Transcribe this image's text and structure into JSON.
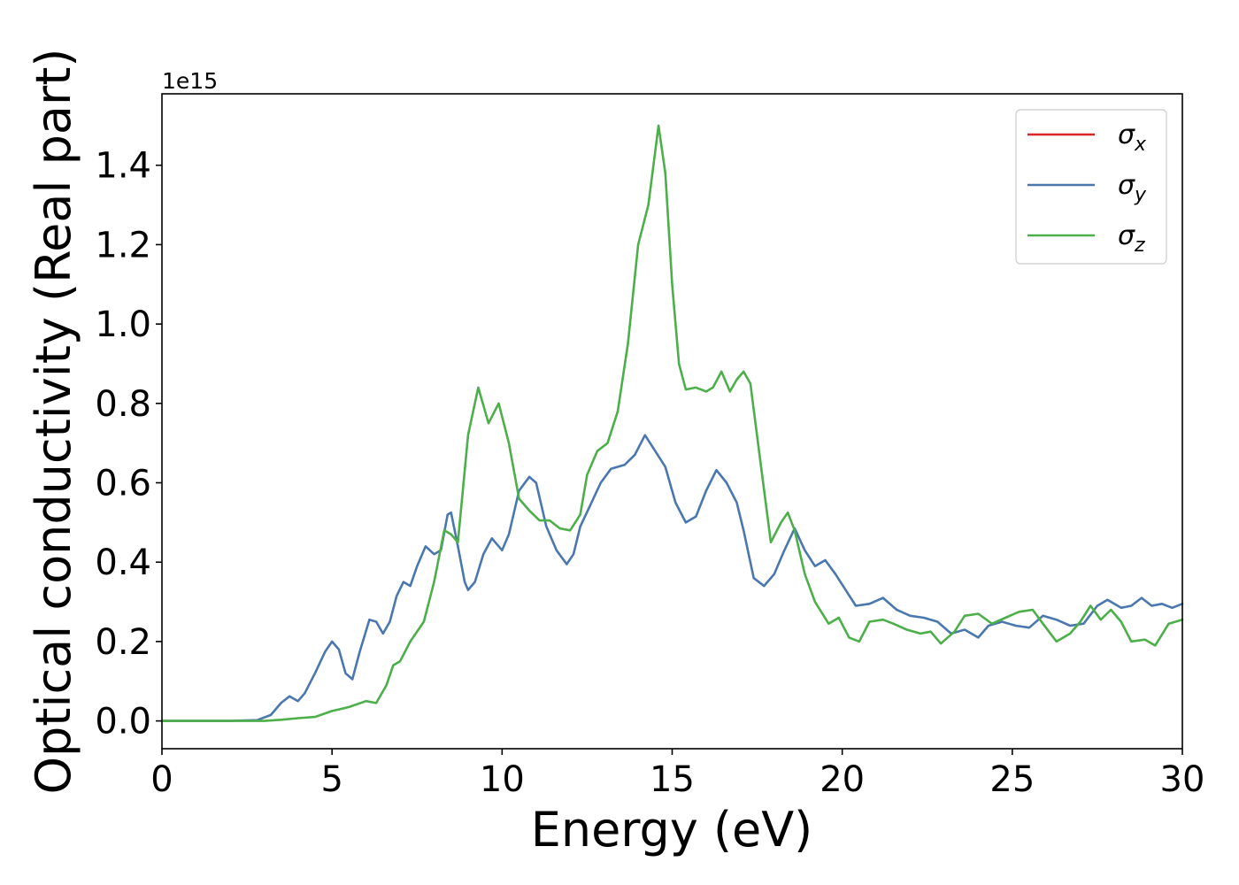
{
  "chart_data": {
    "type": "line",
    "title": "",
    "xlabel": "Energy (eV)",
    "ylabel": "Optical conductivity (Real part)",
    "y_offset_label": "1e15",
    "y_scale": 1000000000000000.0,
    "xlim": [
      0,
      30
    ],
    "ylim": [
      -0.07,
      1.58
    ],
    "x_ticks": [
      0,
      5,
      10,
      15,
      20,
      25,
      30
    ],
    "x_tick_labels": [
      "0",
      "5",
      "10",
      "15",
      "20",
      "25",
      "30"
    ],
    "y_ticks": [
      0.0,
      0.2,
      0.4,
      0.6,
      0.8,
      1.0,
      1.2,
      1.4
    ],
    "y_tick_labels": [
      "0.0",
      "0.2",
      "0.4",
      "0.6",
      "0.8",
      "1.0",
      "1.2",
      "1.4"
    ],
    "grid": false,
    "legend_position": "top-right",
    "series": [
      {
        "name": "σ",
        "subscript": "x",
        "color": "#d62728",
        "points": []
      },
      {
        "name": "σ",
        "subscript": "y",
        "color": "#4a78ae",
        "points": [
          [
            0,
            0.0
          ],
          [
            1,
            0.0
          ],
          [
            2,
            0.0
          ],
          [
            2.8,
            0.002
          ],
          [
            3.2,
            0.015
          ],
          [
            3.5,
            0.045
          ],
          [
            3.75,
            0.062
          ],
          [
            4.0,
            0.05
          ],
          [
            4.2,
            0.07
          ],
          [
            4.5,
            0.12
          ],
          [
            4.8,
            0.175
          ],
          [
            5.0,
            0.2
          ],
          [
            5.2,
            0.18
          ],
          [
            5.4,
            0.12
          ],
          [
            5.6,
            0.105
          ],
          [
            5.8,
            0.17
          ],
          [
            6.1,
            0.255
          ],
          [
            6.3,
            0.25
          ],
          [
            6.5,
            0.22
          ],
          [
            6.7,
            0.25
          ],
          [
            6.9,
            0.315
          ],
          [
            7.1,
            0.35
          ],
          [
            7.3,
            0.34
          ],
          [
            7.5,
            0.39
          ],
          [
            7.75,
            0.44
          ],
          [
            8.0,
            0.42
          ],
          [
            8.2,
            0.43
          ],
          [
            8.4,
            0.52
          ],
          [
            8.5,
            0.525
          ],
          [
            8.7,
            0.44
          ],
          [
            8.9,
            0.35
          ],
          [
            9.0,
            0.33
          ],
          [
            9.2,
            0.35
          ],
          [
            9.45,
            0.42
          ],
          [
            9.7,
            0.46
          ],
          [
            10.0,
            0.43
          ],
          [
            10.2,
            0.47
          ],
          [
            10.5,
            0.58
          ],
          [
            10.8,
            0.615
          ],
          [
            11.0,
            0.6
          ],
          [
            11.3,
            0.49
          ],
          [
            11.6,
            0.43
          ],
          [
            11.9,
            0.395
          ],
          [
            12.1,
            0.42
          ],
          [
            12.3,
            0.49
          ],
          [
            12.6,
            0.545
          ],
          [
            12.9,
            0.6
          ],
          [
            13.2,
            0.635
          ],
          [
            13.6,
            0.645
          ],
          [
            13.9,
            0.67
          ],
          [
            14.2,
            0.72
          ],
          [
            14.5,
            0.68
          ],
          [
            14.8,
            0.64
          ],
          [
            15.1,
            0.55
          ],
          [
            15.4,
            0.5
          ],
          [
            15.7,
            0.515
          ],
          [
            16.0,
            0.58
          ],
          [
            16.3,
            0.632
          ],
          [
            16.6,
            0.6
          ],
          [
            16.9,
            0.55
          ],
          [
            17.1,
            0.48
          ],
          [
            17.4,
            0.36
          ],
          [
            17.7,
            0.34
          ],
          [
            18.0,
            0.37
          ],
          [
            18.3,
            0.43
          ],
          [
            18.6,
            0.485
          ],
          [
            18.9,
            0.43
          ],
          [
            19.2,
            0.39
          ],
          [
            19.5,
            0.405
          ],
          [
            19.8,
            0.37
          ],
          [
            20.1,
            0.33
          ],
          [
            20.4,
            0.29
          ],
          [
            20.8,
            0.295
          ],
          [
            21.2,
            0.31
          ],
          [
            21.6,
            0.28
          ],
          [
            22.0,
            0.265
          ],
          [
            22.4,
            0.26
          ],
          [
            22.8,
            0.25
          ],
          [
            23.2,
            0.22
          ],
          [
            23.6,
            0.23
          ],
          [
            24.0,
            0.21
          ],
          [
            24.3,
            0.24
          ],
          [
            24.7,
            0.25
          ],
          [
            25.1,
            0.24
          ],
          [
            25.5,
            0.235
          ],
          [
            25.9,
            0.265
          ],
          [
            26.3,
            0.255
          ],
          [
            26.7,
            0.24
          ],
          [
            27.1,
            0.245
          ],
          [
            27.5,
            0.29
          ],
          [
            27.8,
            0.305
          ],
          [
            28.2,
            0.285
          ],
          [
            28.5,
            0.29
          ],
          [
            28.8,
            0.31
          ],
          [
            29.1,
            0.29
          ],
          [
            29.4,
            0.295
          ],
          [
            29.7,
            0.285
          ],
          [
            30.0,
            0.295
          ]
        ]
      },
      {
        "name": "σ",
        "subscript": "z",
        "color": "#4daf4a",
        "points": [
          [
            0,
            0.0
          ],
          [
            1,
            0.0
          ],
          [
            2,
            0.0
          ],
          [
            3.0,
            0.0
          ],
          [
            3.5,
            0.003
          ],
          [
            4.0,
            0.007
          ],
          [
            4.5,
            0.01
          ],
          [
            5.0,
            0.025
          ],
          [
            5.5,
            0.035
          ],
          [
            6.0,
            0.05
          ],
          [
            6.3,
            0.045
          ],
          [
            6.6,
            0.09
          ],
          [
            6.8,
            0.14
          ],
          [
            7.0,
            0.15
          ],
          [
            7.3,
            0.2
          ],
          [
            7.7,
            0.25
          ],
          [
            8.0,
            0.35
          ],
          [
            8.3,
            0.48
          ],
          [
            8.5,
            0.47
          ],
          [
            8.7,
            0.45
          ],
          [
            9.0,
            0.72
          ],
          [
            9.3,
            0.84
          ],
          [
            9.6,
            0.75
          ],
          [
            9.9,
            0.8
          ],
          [
            10.2,
            0.7
          ],
          [
            10.5,
            0.56
          ],
          [
            10.8,
            0.53
          ],
          [
            11.1,
            0.505
          ],
          [
            11.4,
            0.505
          ],
          [
            11.7,
            0.485
          ],
          [
            12.0,
            0.48
          ],
          [
            12.3,
            0.52
          ],
          [
            12.5,
            0.62
          ],
          [
            12.8,
            0.68
          ],
          [
            13.1,
            0.7
          ],
          [
            13.4,
            0.78
          ],
          [
            13.7,
            0.95
          ],
          [
            14.0,
            1.2
          ],
          [
            14.3,
            1.3
          ],
          [
            14.6,
            1.5
          ],
          [
            14.8,
            1.38
          ],
          [
            15.0,
            1.1
          ],
          [
            15.2,
            0.9
          ],
          [
            15.4,
            0.835
          ],
          [
            15.7,
            0.84
          ],
          [
            16.0,
            0.83
          ],
          [
            16.2,
            0.84
          ],
          [
            16.45,
            0.88
          ],
          [
            16.7,
            0.83
          ],
          [
            16.9,
            0.86
          ],
          [
            17.1,
            0.88
          ],
          [
            17.3,
            0.85
          ],
          [
            17.6,
            0.65
          ],
          [
            17.9,
            0.45
          ],
          [
            18.2,
            0.5
          ],
          [
            18.4,
            0.525
          ],
          [
            18.6,
            0.48
          ],
          [
            18.9,
            0.37
          ],
          [
            19.2,
            0.3
          ],
          [
            19.6,
            0.245
          ],
          [
            19.9,
            0.26
          ],
          [
            20.2,
            0.21
          ],
          [
            20.5,
            0.2
          ],
          [
            20.8,
            0.25
          ],
          [
            21.2,
            0.255
          ],
          [
            21.5,
            0.245
          ],
          [
            21.9,
            0.23
          ],
          [
            22.3,
            0.22
          ],
          [
            22.6,
            0.225
          ],
          [
            22.9,
            0.195
          ],
          [
            23.3,
            0.225
          ],
          [
            23.6,
            0.265
          ],
          [
            24.0,
            0.27
          ],
          [
            24.4,
            0.245
          ],
          [
            24.8,
            0.26
          ],
          [
            25.2,
            0.275
          ],
          [
            25.6,
            0.28
          ],
          [
            25.9,
            0.245
          ],
          [
            26.3,
            0.2
          ],
          [
            26.7,
            0.22
          ],
          [
            27.0,
            0.25
          ],
          [
            27.3,
            0.29
          ],
          [
            27.6,
            0.255
          ],
          [
            27.9,
            0.28
          ],
          [
            28.2,
            0.25
          ],
          [
            28.5,
            0.2
          ],
          [
            28.9,
            0.205
          ],
          [
            29.2,
            0.19
          ],
          [
            29.6,
            0.245
          ],
          [
            30.0,
            0.255
          ]
        ]
      }
    ]
  }
}
